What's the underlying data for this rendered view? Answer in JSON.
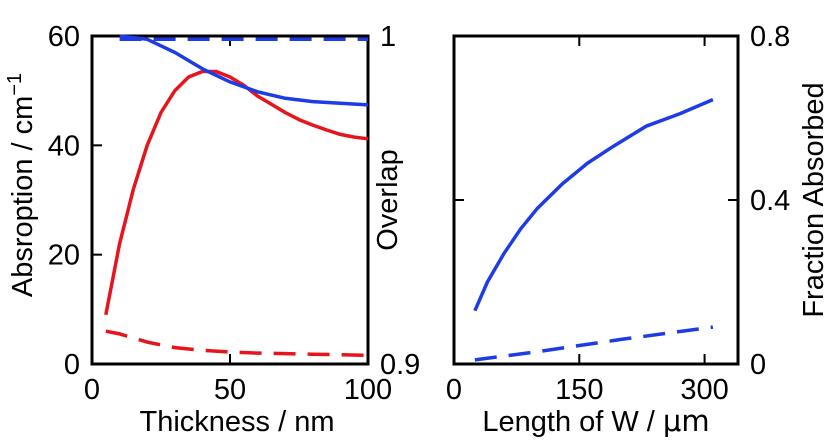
{
  "chart_data": [
    {
      "type": "line",
      "name": "left-panel",
      "xlabel": "Thickness / nm",
      "ylabel_left": "Absroption / cm",
      "ylabel_left_sup": "−1",
      "ylabel_right": "Overlap",
      "xlim": [
        0,
        100
      ],
      "ylim_left": [
        0,
        60
      ],
      "ylim_right": [
        0.9,
        1.0
      ],
      "xticks": [
        0,
        50,
        100
      ],
      "xtick_labels": [
        "0",
        "50",
        "100"
      ],
      "yticks_left": [
        0,
        20,
        40,
        60
      ],
      "ytick_labels_left": [
        "0",
        "20",
        "40",
        "60"
      ],
      "yticks_right": [
        0.9,
        1.0
      ],
      "ytick_labels_right": [
        "0.9",
        "1"
      ],
      "series": [
        {
          "name": "Absorption solid",
          "axis": "left",
          "color": "#e8141c",
          "dash": "solid",
          "x": [
            5,
            10,
            15,
            20,
            25,
            30,
            35,
            40,
            45,
            50,
            55,
            60,
            65,
            70,
            75,
            80,
            85,
            90,
            95,
            100
          ],
          "y": [
            9,
            22,
            32,
            40,
            46,
            50,
            52.5,
            53.5,
            53.5,
            52.5,
            51,
            49,
            47.5,
            46,
            44.7,
            43.7,
            42.8,
            42,
            41.5,
            41.2
          ]
        },
        {
          "name": "Absorption dashed",
          "axis": "left",
          "color": "#e8141c",
          "dash": "dashed",
          "x": [
            5,
            10,
            20,
            30,
            40,
            50,
            60,
            70,
            80,
            90,
            100
          ],
          "y": [
            6,
            5.5,
            4,
            3,
            2.5,
            2.2,
            2,
            1.9,
            1.8,
            1.7,
            1.6
          ]
        },
        {
          "name": "Overlap solid",
          "axis": "right",
          "color": "#1e3ce6",
          "dash": "solid",
          "x": [
            10,
            20,
            30,
            40,
            50,
            60,
            70,
            80,
            90,
            100
          ],
          "y": [
            1.0,
            0.999,
            0.995,
            0.99,
            0.986,
            0.983,
            0.981,
            0.98,
            0.9795,
            0.979
          ]
        },
        {
          "name": "Overlap dashed",
          "axis": "right",
          "color": "#1e3ce6",
          "dash": "dashed",
          "x": [
            10,
            100
          ],
          "y": [
            0.999,
            0.999
          ]
        }
      ]
    },
    {
      "type": "line",
      "name": "right-panel",
      "xlabel": "Length of W / ",
      "xlabel_unit": "μm",
      "ylabel_right": "Fraction Absorbed",
      "xlim": [
        0,
        340
      ],
      "ylim_right": [
        0,
        0.8
      ],
      "xticks": [
        0,
        150,
        300
      ],
      "xtick_labels": [
        "0",
        "150",
        "300"
      ],
      "yticks_right": [
        0,
        0.4,
        0.8
      ],
      "ytick_labels_right": [
        "0",
        "0.4",
        "0.8"
      ],
      "series": [
        {
          "name": "Fraction absorbed solid",
          "axis": "right",
          "color": "#1e3ce6",
          "dash": "solid",
          "x": [
            25,
            40,
            60,
            80,
            100,
            130,
            160,
            190,
            230,
            270,
            310
          ],
          "y": [
            0.13,
            0.2,
            0.27,
            0.33,
            0.38,
            0.44,
            0.49,
            0.53,
            0.58,
            0.61,
            0.645
          ]
        },
        {
          "name": "Fraction absorbed dashed",
          "axis": "right",
          "color": "#1e3ce6",
          "dash": "dashed",
          "x": [
            25,
            100,
            200,
            310
          ],
          "y": [
            0.01,
            0.03,
            0.06,
            0.09
          ]
        }
      ]
    }
  ]
}
